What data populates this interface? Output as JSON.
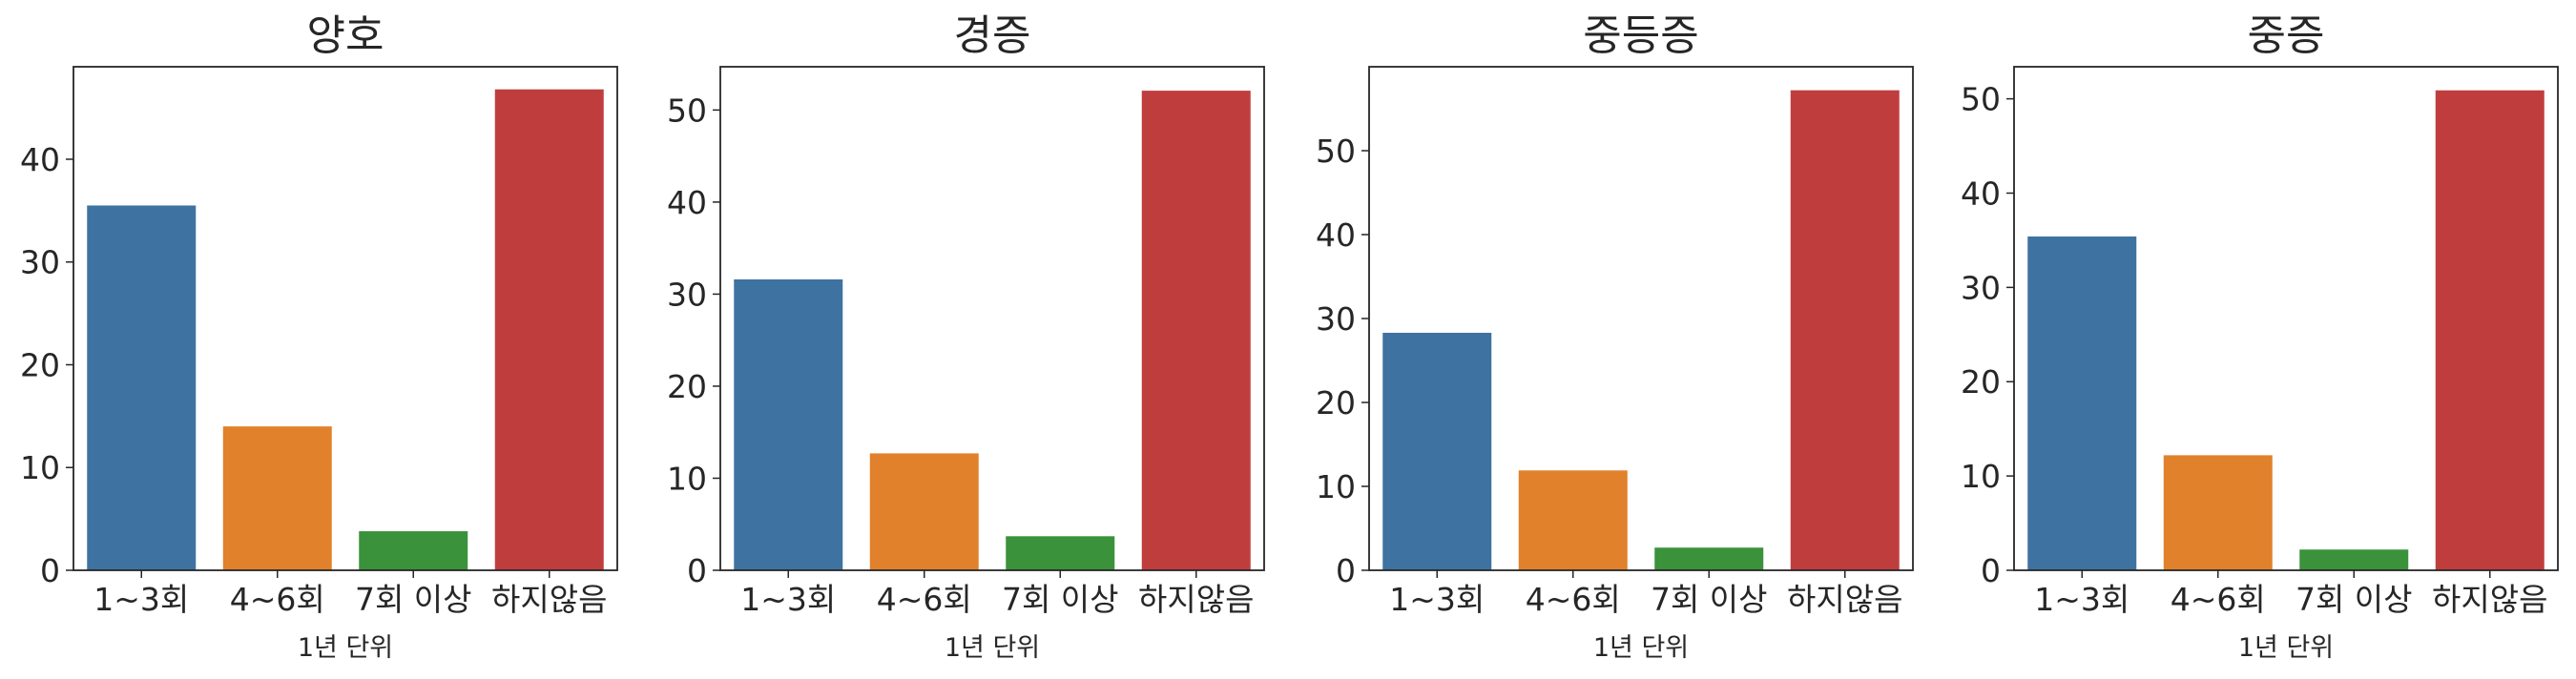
{
  "chart_data": [
    {
      "type": "bar",
      "title": "양호",
      "xlabel": "1년 단위",
      "ylabel": "",
      "categories": [
        "1~3회",
        "4~6회",
        "7회 이상",
        "하지않음"
      ],
      "values": [
        35.5,
        14.0,
        3.8,
        46.8
      ],
      "ylim": [
        0,
        49
      ],
      "yticks": [
        0,
        10,
        20,
        30,
        40
      ],
      "colors": [
        "#3e72a1",
        "#e1812c",
        "#3a923a",
        "#c03d3e"
      ],
      "grid": false
    },
    {
      "type": "bar",
      "title": "경증",
      "xlabel": "1년 단위",
      "ylabel": "",
      "categories": [
        "1~3회",
        "4~6회",
        "7회 이상",
        "하지않음"
      ],
      "values": [
        31.6,
        12.7,
        3.7,
        52.1
      ],
      "ylim": [
        0,
        54.7
      ],
      "yticks": [
        0,
        10,
        20,
        30,
        40,
        50
      ],
      "colors": [
        "#3e72a1",
        "#e1812c",
        "#3a923a",
        "#c03d3e"
      ],
      "grid": false
    },
    {
      "type": "bar",
      "title": "중등증",
      "xlabel": "1년 단위",
      "ylabel": "",
      "categories": [
        "1~3회",
        "4~6회",
        "7회 이상",
        "하지않음"
      ],
      "values": [
        28.3,
        11.9,
        2.7,
        57.2
      ],
      "ylim": [
        0,
        60
      ],
      "yticks": [
        0,
        10,
        20,
        30,
        40,
        50
      ],
      "colors": [
        "#3e72a1",
        "#e1812c",
        "#3a923a",
        "#c03d3e"
      ],
      "grid": false
    },
    {
      "type": "bar",
      "title": "중증",
      "xlabel": "1년 단위",
      "ylabel": "",
      "categories": [
        "1~3회",
        "4~6회",
        "7회 이상",
        "하지않음"
      ],
      "values": [
        35.4,
        12.2,
        2.2,
        50.9
      ],
      "ylim": [
        0,
        53.4
      ],
      "yticks": [
        0,
        10,
        20,
        30,
        40,
        50
      ],
      "colors": [
        "#3e72a1",
        "#e1812c",
        "#3a923a",
        "#c03d3e"
      ],
      "grid": false
    }
  ]
}
